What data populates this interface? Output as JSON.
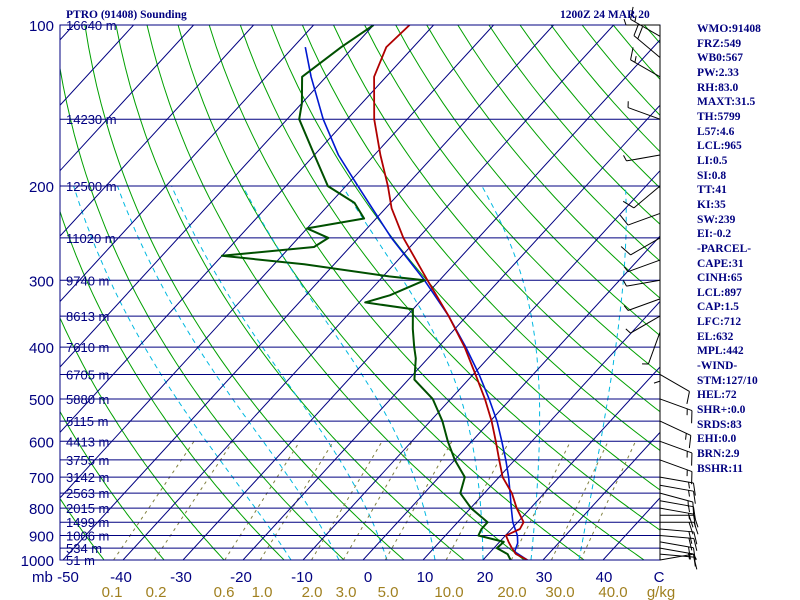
{
  "header": {
    "title": "PTRO (91408) Sounding",
    "valid_time": "1200Z 24 MAR 20"
  },
  "stats": [
    "WMO:91408",
    "FRZ:549",
    "WB0:567",
    "PW:2.33",
    "RH:83.0",
    "MAXT:31.5",
    "TH:5799",
    "L57:4.6",
    "LCL:965",
    "LI:0.5",
    "SI:0.8",
    "TT:41",
    "KI:35",
    "SW:239",
    "EI:-0.2",
    "-PARCEL-",
    "CAPE:31",
    "CINH:65",
    "LCL:897",
    "CAP:1.5",
    "LFC:712",
    "EL:632",
    "MPL:442",
    "-WIND-",
    "STM:127/10",
    "HEL:72",
    "SHR+:0.0",
    "SRDS:83",
    "EHI:0.0",
    "BRN:2.9",
    "BSHR:11"
  ],
  "colors": {
    "text": "#000080",
    "isobar": "#000080",
    "isotherm": "#000080",
    "dry_adiabat": "#00a000",
    "moist_adiabat": "#00b8e0",
    "mixing_ratio": "#808040",
    "temperature": "#b00000",
    "dewpoint": "#005000",
    "parcel": "#0018d0",
    "wind": "#000000",
    "bottom_labels": "#a08020"
  },
  "chart_data": {
    "type": "skew-t",
    "pressure_unit": "mb",
    "temp_unit": "C",
    "mixing_ratio_unit": "g/kg",
    "pressure_range": [
      1000,
      100
    ],
    "temp_axis": [
      -50,
      40
    ],
    "pressure_ticks": [
      {
        "p": 100,
        "label": "100",
        "height": "16640 m"
      },
      {
        "p": 150,
        "label": "",
        "height": "14230 m"
      },
      {
        "p": 200,
        "label": "200",
        "height": "12500 m"
      },
      {
        "p": 250,
        "label": "",
        "height": "11020 m"
      },
      {
        "p": 300,
        "label": "300",
        "height": "9740 m"
      },
      {
        "p": 350,
        "label": "",
        "height": "8613 m"
      },
      {
        "p": 400,
        "label": "400",
        "height": "7610 m"
      },
      {
        "p": 450,
        "label": "",
        "height": "6705 m"
      },
      {
        "p": 500,
        "label": "500",
        "height": "5880 m"
      },
      {
        "p": 550,
        "label": "",
        "height": "5115 m"
      },
      {
        "p": 600,
        "label": "600",
        "height": "4413 m"
      },
      {
        "p": 650,
        "label": "",
        "height": "3755 m"
      },
      {
        "p": 700,
        "label": "700",
        "height": "3142 m"
      },
      {
        "p": 750,
        "label": "",
        "height": "2563 m"
      },
      {
        "p": 800,
        "label": "800",
        "height": "2015 m"
      },
      {
        "p": 850,
        "label": "",
        "height": "1499 m"
      },
      {
        "p": 900,
        "label": "900",
        "height": "1006 m"
      },
      {
        "p": 950,
        "label": "",
        "height": "534 m"
      },
      {
        "p": 1000,
        "label": "1000",
        "height": "51 m"
      }
    ],
    "temp_tick_labels": [
      "mb",
      "-50",
      "-40",
      "-30",
      "-20",
      "-10",
      "0",
      "10",
      "20",
      "30",
      "40",
      "C"
    ],
    "mixing_ratio_labels": [
      "0.1",
      "0.2",
      "0.6",
      "1.0",
      "2.0",
      "3.0",
      "5.0",
      "10.0",
      "20.0",
      "30.0",
      "40.0",
      "g/kg"
    ],
    "temperature": [
      [
        1000,
        27.4
      ],
      [
        975,
        24.6
      ],
      [
        950,
        23.0
      ],
      [
        925,
        21.5
      ],
      [
        900,
        20.1
      ],
      [
        875,
        21.4
      ],
      [
        850,
        21.0
      ],
      [
        800,
        17.7
      ],
      [
        750,
        14.6
      ],
      [
        700,
        10.6
      ],
      [
        650,
        7.4
      ],
      [
        600,
        4.0
      ],
      [
        550,
        0.2
      ],
      [
        500,
        -4.3
      ],
      [
        450,
        -9.6
      ],
      [
        400,
        -15.6
      ],
      [
        350,
        -23.0
      ],
      [
        300,
        -32.0
      ],
      [
        250,
        -42.5
      ],
      [
        220,
        -49.0
      ],
      [
        200,
        -53.0
      ],
      [
        175,
        -59.0
      ],
      [
        150,
        -65.5
      ],
      [
        125,
        -72.0
      ],
      [
        110,
        -74.5
      ],
      [
        100,
        -74.0
      ]
    ],
    "dewpoint": [
      [
        1000,
        24.6
      ],
      [
        975,
        23.2
      ],
      [
        950,
        20.5
      ],
      [
        925,
        20.7
      ],
      [
        900,
        15.5
      ],
      [
        875,
        15.0
      ],
      [
        850,
        15.0
      ],
      [
        800,
        10.1
      ],
      [
        750,
        6.0
      ],
      [
        700,
        4.3
      ],
      [
        650,
        0.0
      ],
      [
        600,
        -4.0
      ],
      [
        550,
        -8.0
      ],
      [
        500,
        -13.0
      ],
      [
        460,
        -19.0
      ],
      [
        420,
        -22.0
      ],
      [
        400,
        -24.0
      ],
      [
        370,
        -27.0
      ],
      [
        340,
        -30.0
      ],
      [
        330,
        -39.0
      ],
      [
        320,
        -36.0
      ],
      [
        300,
        -32.5
      ],
      [
        295,
        -39.0
      ],
      [
        280,
        -55.0
      ],
      [
        270,
        -70.0
      ],
      [
        260,
        -56.0
      ],
      [
        250,
        -55.0
      ],
      [
        240,
        -60.0
      ],
      [
        230,
        -52.0
      ],
      [
        215,
        -56.0
      ],
      [
        200,
        -63.0
      ],
      [
        175,
        -70.0
      ],
      [
        150,
        -78.0
      ],
      [
        140,
        -80.0
      ],
      [
        125,
        -84.0
      ],
      [
        110,
        -82.0
      ],
      [
        100,
        -80.0
      ]
    ],
    "parcel": [
      [
        1000,
        27.4
      ],
      [
        965,
        24.0
      ],
      [
        930,
        23.2
      ],
      [
        900,
        22.0
      ],
      [
        850,
        19.2
      ],
      [
        800,
        16.8
      ],
      [
        750,
        14.3
      ],
      [
        700,
        11.6
      ],
      [
        650,
        8.5
      ],
      [
        600,
        5.0
      ],
      [
        550,
        1.1
      ],
      [
        500,
        -3.6
      ],
      [
        450,
        -9.0
      ],
      [
        400,
        -15.4
      ],
      [
        350,
        -23.0
      ],
      [
        300,
        -32.5
      ],
      [
        250,
        -44.5
      ],
      [
        200,
        -58.0
      ],
      [
        175,
        -66.0
      ],
      [
        150,
        -74.0
      ],
      [
        125,
        -82.5
      ],
      [
        110,
        -88.0
      ]
    ],
    "dry_adiabat_thetas_K": [
      230,
      240,
      250,
      260,
      270,
      280,
      290,
      300,
      310,
      320,
      330,
      340,
      350,
      360,
      370,
      380,
      390,
      400,
      410,
      420,
      430,
      440,
      450,
      460,
      470,
      480,
      490,
      500,
      520,
      540
    ],
    "moist_adiabat_thetaw_C": [
      -12,
      -4,
      4,
      12,
      20,
      28,
      36
    ],
    "mixing_ratios_gkg": [
      0.1,
      0.2,
      0.6,
      1.0,
      2.0,
      3.0,
      5.0,
      10.0,
      20.0,
      30.0,
      40.0
    ],
    "wind_barbs": [
      {
        "p": 1000,
        "dir": 80,
        "spd": 5
      },
      {
        "p": 975,
        "dir": 95,
        "spd": 10
      },
      {
        "p": 950,
        "dir": 100,
        "spd": 15
      },
      {
        "p": 925,
        "dir": 100,
        "spd": 20
      },
      {
        "p": 900,
        "dir": 95,
        "spd": 20
      },
      {
        "p": 875,
        "dir": 95,
        "spd": 20
      },
      {
        "p": 850,
        "dir": 90,
        "spd": 20
      },
      {
        "p": 825,
        "dir": 90,
        "spd": 20
      },
      {
        "p": 800,
        "dir": 100,
        "spd": 15
      },
      {
        "p": 775,
        "dir": 100,
        "spd": 15
      },
      {
        "p": 750,
        "dir": 105,
        "spd": 15
      },
      {
        "p": 725,
        "dir": 100,
        "spd": 15
      },
      {
        "p": 700,
        "dir": 100,
        "spd": 15
      },
      {
        "p": 650,
        "dir": 110,
        "spd": 15
      },
      {
        "p": 600,
        "dir": 110,
        "spd": 15
      },
      {
        "p": 550,
        "dir": 115,
        "spd": 15
      },
      {
        "p": 500,
        "dir": 110,
        "spd": 15
      },
      {
        "p": 450,
        "dir": 120,
        "spd": 10
      },
      {
        "p": 400,
        "dir": 180,
        "spd": 5
      },
      {
        "p": 375,
        "dir": 200,
        "spd": 5
      },
      {
        "p": 350,
        "dir": 240,
        "spd": 5
      },
      {
        "p": 325,
        "dir": 250,
        "spd": 5
      },
      {
        "p": 300,
        "dir": 260,
        "spd": 5
      },
      {
        "p": 275,
        "dir": 250,
        "spd": 5
      },
      {
        "p": 250,
        "dir": 240,
        "spd": 10
      },
      {
        "p": 225,
        "dir": 250,
        "spd": 10
      },
      {
        "p": 200,
        "dir": 230,
        "spd": 10
      },
      {
        "p": 175,
        "dir": 260,
        "spd": 5
      },
      {
        "p": 150,
        "dir": 290,
        "spd": 5
      },
      {
        "p": 125,
        "dir": 300,
        "spd": 15
      },
      {
        "p": 115,
        "dir": 310,
        "spd": 20
      },
      {
        "p": 105,
        "dir": 300,
        "spd": 15
      },
      {
        "p": 100,
        "dir": 270,
        "spd": 5
      }
    ]
  }
}
